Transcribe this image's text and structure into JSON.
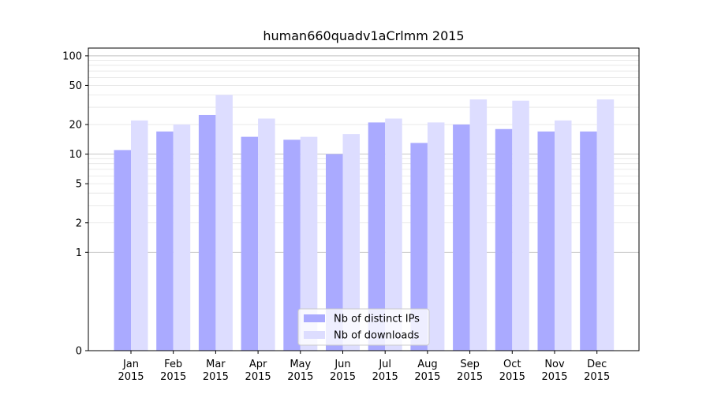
{
  "chart_data": {
    "type": "bar",
    "title": "human660quadv1aCrlmm 2015",
    "xlabel": "",
    "ylabel": "",
    "y_scale": "symlog",
    "ylim": [
      0,
      120
    ],
    "y_ticks": [
      0,
      1,
      2,
      5,
      10,
      20,
      50,
      100
    ],
    "y_tick_labels": [
      "0",
      "1",
      "2",
      "5",
      "10",
      "20",
      "50",
      "100"
    ],
    "categories": [
      [
        "Jan",
        "2015"
      ],
      [
        "Feb",
        "2015"
      ],
      [
        "Mar",
        "2015"
      ],
      [
        "Apr",
        "2015"
      ],
      [
        "May",
        "2015"
      ],
      [
        "Jun",
        "2015"
      ],
      [
        "Jul",
        "2015"
      ],
      [
        "Aug",
        "2015"
      ],
      [
        "Sep",
        "2015"
      ],
      [
        "Oct",
        "2015"
      ],
      [
        "Nov",
        "2015"
      ],
      [
        "Dec",
        "2015"
      ]
    ],
    "series": [
      {
        "name": "Nb of distinct IPs",
        "color": "#aaaaff",
        "values": [
          11,
          17,
          25,
          15,
          14,
          10,
          21,
          13,
          20,
          18,
          17,
          17
        ]
      },
      {
        "name": "Nb of downloads",
        "color": "#ddddff",
        "values": [
          22,
          20,
          40,
          23,
          15,
          16,
          23,
          21,
          36,
          35,
          22,
          36
        ]
      }
    ],
    "legend_position": "bottom-center",
    "grid": "horizontal"
  }
}
